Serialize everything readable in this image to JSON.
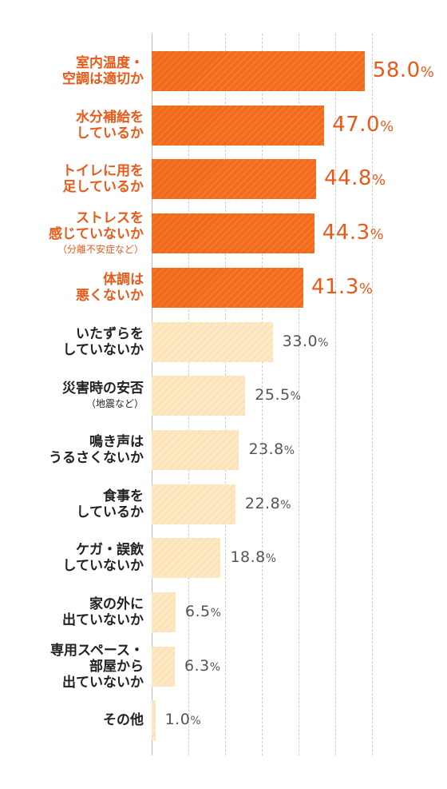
{
  "chart_data": {
    "type": "bar",
    "orientation": "horizontal",
    "xlim": [
      0,
      60
    ],
    "grid": true,
    "unit": "%",
    "categories": [
      {
        "lines": [
          "室内温度・",
          "空調は適切か"
        ],
        "sub": "",
        "value": 58.0,
        "value_label": "58.0",
        "highlight": true
      },
      {
        "lines": [
          "水分補給を",
          "しているか"
        ],
        "sub": "",
        "value": 47.0,
        "value_label": "47.0",
        "highlight": true
      },
      {
        "lines": [
          "トイレに用を",
          "足しているか"
        ],
        "sub": "",
        "value": 44.8,
        "value_label": "44.8",
        "highlight": true
      },
      {
        "lines": [
          "ストレスを",
          "感じていないか"
        ],
        "sub": "（分離不安症など）",
        "value": 44.3,
        "value_label": "44.3",
        "highlight": true
      },
      {
        "lines": [
          "体調は",
          "悪くないか"
        ],
        "sub": "",
        "value": 41.3,
        "value_label": "41.3",
        "highlight": true
      },
      {
        "lines": [
          "いたずらを",
          "していないか"
        ],
        "sub": "",
        "value": 33.0,
        "value_label": "33.0",
        "highlight": false
      },
      {
        "lines": [
          "災害時の安否"
        ],
        "sub": "（地震など）",
        "value": 25.5,
        "value_label": "25.5",
        "highlight": false
      },
      {
        "lines": [
          "鳴き声は",
          "うるさくないか"
        ],
        "sub": "",
        "value": 23.8,
        "value_label": "23.8",
        "highlight": false
      },
      {
        "lines": [
          "食事を",
          "しているか"
        ],
        "sub": "",
        "value": 22.8,
        "value_label": "22.8",
        "highlight": false
      },
      {
        "lines": [
          "ケガ・誤飲",
          "していないか"
        ],
        "sub": "",
        "value": 18.8,
        "value_label": "18.8",
        "highlight": false
      },
      {
        "lines": [
          "家の外に",
          "出ていないか"
        ],
        "sub": "",
        "value": 6.5,
        "value_label": "6.5",
        "highlight": false
      },
      {
        "lines": [
          "専用スペース・",
          "部屋から",
          "出ていないか"
        ],
        "sub": "",
        "value": 6.3,
        "value_label": "6.3",
        "highlight": false
      },
      {
        "lines": [
          "その他"
        ],
        "sub": "",
        "value": 1.0,
        "value_label": "1.0",
        "highlight": false
      }
    ],
    "colors": {
      "highlight": "#f26a1b",
      "normal": "#fde3b8",
      "highlight_text": "#e85a1a",
      "normal_text": "#555555"
    }
  }
}
